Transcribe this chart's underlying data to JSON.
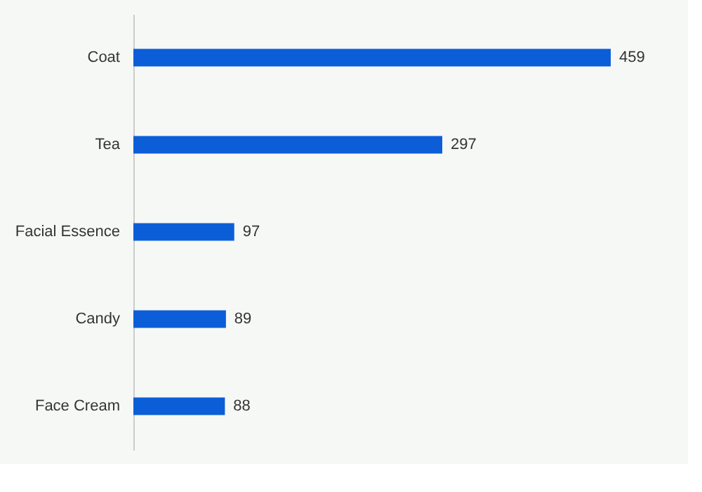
{
  "chart_data": {
    "type": "bar",
    "orientation": "horizontal",
    "categories": [
      "Coat",
      "Tea",
      "Facial Essence",
      "Candy",
      "Face Cream"
    ],
    "values": [
      459,
      297,
      97,
      89,
      88
    ],
    "color": "#0b5ed7",
    "data_labels": true
  }
}
